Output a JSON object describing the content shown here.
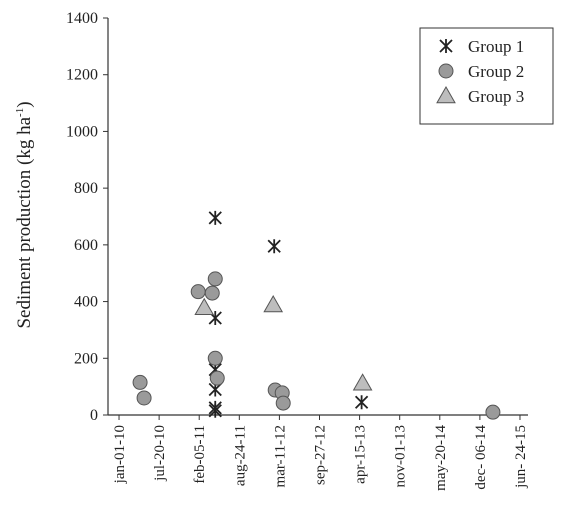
{
  "chart_data": {
    "type": "scatter",
    "ylabel_parts": [
      "Sediment production (kg ha",
      "-1",
      ")"
    ],
    "xlim": [
      "2009-11-07",
      "2015-08-03"
    ],
    "xticks": [
      {
        "value": "2010-01-01",
        "label": "jan-01-10"
      },
      {
        "value": "2010-07-20",
        "label": "jul-20-10"
      },
      {
        "value": "2011-02-05",
        "label": "feb-05-11"
      },
      {
        "value": "2011-08-24",
        "label": "aug-24-11"
      },
      {
        "value": "2012-03-11",
        "label": "mar-11-12"
      },
      {
        "value": "2012-09-27",
        "label": "sep-27-12"
      },
      {
        "value": "2013-04-15",
        "label": "apr-15-13"
      },
      {
        "value": "2013-11-01",
        "label": "nov-01-13"
      },
      {
        "value": "2014-05-20",
        "label": "may-20-14"
      },
      {
        "value": "2014-12-06",
        "label": "dec- 06-14"
      },
      {
        "value": "2015-06-24",
        "label": "jun- 24-15"
      }
    ],
    "ylim": [
      0,
      1400
    ],
    "yticks": [
      0,
      200,
      400,
      600,
      800,
      1000,
      1200,
      1400
    ],
    "legend": "top-right",
    "series": [
      {
        "name": "Group 1",
        "marker": "star",
        "color": "#222222",
        "x": [
          "2011-04-26",
          "2011-04-26",
          "2011-04-26",
          "2011-04-26",
          "2011-04-26",
          "2011-04-26",
          "2012-02-14",
          "2013-04-25"
        ],
        "values": [
          695,
          342,
          160,
          90,
          25,
          15,
          595,
          45
        ]
      },
      {
        "name": "Group 2",
        "marker": "circle",
        "color": "#9a9a9a",
        "x": [
          "2010-04-16",
          "2010-05-06",
          "2011-01-31",
          "2011-04-11",
          "2011-04-26",
          "2011-04-26",
          "2011-05-06",
          "2012-02-19",
          "2012-03-25",
          "2012-03-30",
          "2015-02-09"
        ],
        "values": [
          115,
          60,
          435,
          430,
          480,
          200,
          130,
          88,
          78,
          42,
          10
        ]
      },
      {
        "name": "Group 3",
        "marker": "triangle",
        "color": "#bdbdbd",
        "x": [
          "2011-03-02",
          "2012-02-09",
          "2013-04-30"
        ],
        "values": [
          378,
          388,
          112
        ]
      }
    ]
  }
}
